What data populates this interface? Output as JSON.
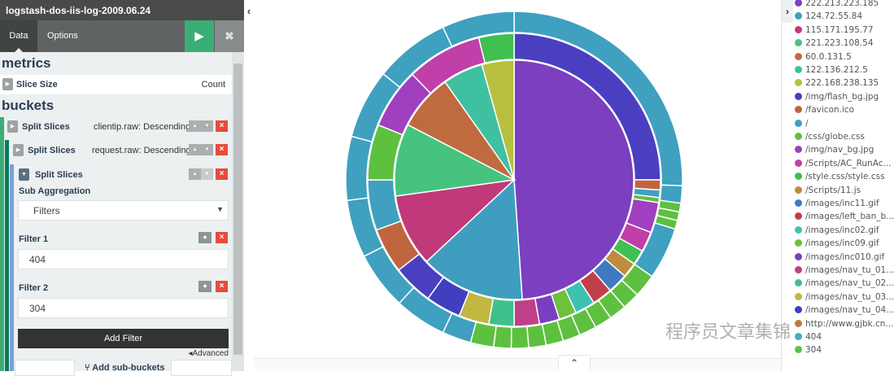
{
  "window": {
    "title": "logstash-dos-iis-log-2009.06.24"
  },
  "tabs": [
    {
      "label": "Data"
    },
    {
      "label": "Options"
    }
  ],
  "actions": {
    "apply_icon": "play-icon",
    "discard_icon": "close-icon"
  },
  "metrics": {
    "heading": "metrics",
    "items": [
      {
        "label": "Slice Size",
        "value": "Count"
      }
    ]
  },
  "buckets": {
    "heading": "buckets",
    "aggs": [
      {
        "label": "Split Slices",
        "summary": "clientip.raw: Descending",
        "color": "#3aae74"
      },
      {
        "label": "Split Slices",
        "summary": "request.raw: Descending",
        "color": "#0b7a5a"
      },
      {
        "label": "Split Slices",
        "summary": "",
        "color": "#7b9ed8"
      }
    ],
    "sub_aggregation_label": "Sub Aggregation",
    "sub_aggregation_value": "Filters",
    "filters": [
      {
        "label": "Filter 1",
        "value": "404"
      },
      {
        "label": "Filter 2",
        "value": "304"
      }
    ],
    "add_filter_label": "Add Filter",
    "advanced_label": "Advanced",
    "add_sub_buckets_label": "Add sub-buckets"
  },
  "legend": {
    "items": [
      {
        "label": "222.213.223.185",
        "color": "#7b3fbf"
      },
      {
        "label": "124.72.55.84",
        "color": "#3f9ec0"
      },
      {
        "label": "115.171.195.77",
        "color": "#c0397a"
      },
      {
        "label": "221.223.108.54",
        "color": "#45c37f"
      },
      {
        "label": "60.0.131.5",
        "color": "#c06a3f"
      },
      {
        "label": "122.136.212.5",
        "color": "#3fc0a0"
      },
      {
        "label": "222.168.238.135",
        "color": "#b8bf3f"
      },
      {
        "label": "/img/flash_bg.jpg",
        "color": "#4a3fc0"
      },
      {
        "label": "/favicon.ico",
        "color": "#c0653f"
      },
      {
        "label": "/",
        "color": "#3fa0c0"
      },
      {
        "label": "/css/globe.css",
        "color": "#5ec03f"
      },
      {
        "label": "/img/nav_bg.jpg",
        "color": "#a03fc0"
      },
      {
        "label": "/Scripts/AC_RunAc...",
        "color": "#c03fa8"
      },
      {
        "label": "/style.css/style.css",
        "color": "#40c050"
      },
      {
        "label": "/Scripts/11.js",
        "color": "#c08a3f"
      },
      {
        "label": "/images/inc11.gif",
        "color": "#3f7ac0"
      },
      {
        "label": "/images/left_ban_b...",
        "color": "#c03f4a"
      },
      {
        "label": "/images/inc02.gif",
        "color": "#3fc0b0"
      },
      {
        "label": "/images/inc09.gif",
        "color": "#6ec03f"
      },
      {
        "label": "/images/inc010.gif",
        "color": "#7a3fc0"
      },
      {
        "label": "/images/nav_tu_01...",
        "color": "#c03f8a"
      },
      {
        "label": "/images/nav_tu_02...",
        "color": "#3fc08a"
      },
      {
        "label": "/images/nav_tu_03...",
        "color": "#c0b83f"
      },
      {
        "label": "/images/nav_tu_04...",
        "color": "#3f3fc0"
      },
      {
        "label": "http://www.gjbk.cn...",
        "color": "#c07a3f"
      },
      {
        "label": "404",
        "color": "#3fb0c0"
      },
      {
        "label": "304",
        "color": "#5ec03f"
      }
    ]
  },
  "watermark": "程序员文章集锦",
  "chart_data": {
    "type": "pie",
    "rings": [
      {
        "name": "clientip.raw",
        "slices": [
          {
            "label": "222.213.223.185",
            "value": 45
          },
          {
            "label": "124.72.55.84",
            "value": 13
          },
          {
            "label": "115.171.195.77",
            "value": 9
          },
          {
            "label": "221.223.108.54",
            "value": 9
          },
          {
            "label": "60.0.131.5",
            "value": 7
          },
          {
            "label": "122.136.212.5",
            "value": 5
          },
          {
            "label": "222.168.238.135",
            "value": 4
          }
        ]
      }
    ]
  }
}
